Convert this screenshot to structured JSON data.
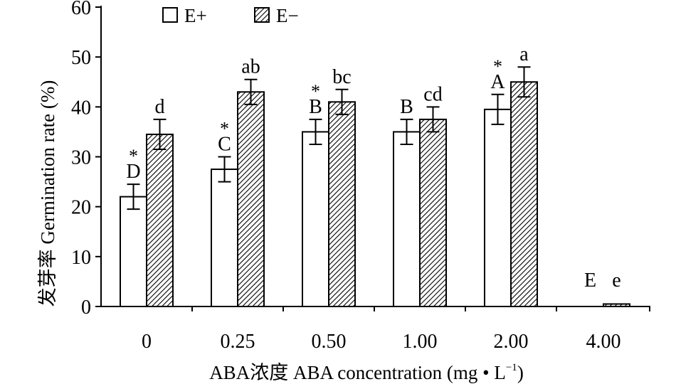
{
  "chart_data": {
    "type": "bar",
    "title": "",
    "ylabel": "发芽率 Germination rate (%)",
    "xlabel": "ABA浓度 ABA concentration (mg • L",
    "xlabel_sup": "−1",
    "xlabel_close": ")",
    "ylim": [
      0,
      60
    ],
    "yticks": [
      0,
      10,
      20,
      30,
      40,
      50,
      60
    ],
    "categories": [
      "0",
      "0.25",
      "0.50",
      "1.00",
      "2.00",
      "4.00"
    ],
    "legend_position": "top-left",
    "series": [
      {
        "name": "E+",
        "fill": "white",
        "values": [
          22.0,
          27.5,
          35.0,
          35.0,
          39.5,
          0
        ],
        "errors": [
          2.5,
          2.5,
          2.5,
          2.5,
          3.0,
          0
        ],
        "letters": [
          "D",
          "C",
          "B",
          "B",
          "A",
          "E"
        ],
        "stars": [
          "*",
          "*",
          "*",
          "",
          "*",
          ""
        ]
      },
      {
        "name": "E−",
        "fill": "hatched",
        "values": [
          34.5,
          43.0,
          41.0,
          37.5,
          45.0,
          0.5
        ],
        "errors": [
          3.0,
          2.5,
          2.5,
          2.5,
          3.0,
          0
        ],
        "letters": [
          "d",
          "ab",
          "bc",
          "cd",
          "a",
          "e"
        ],
        "stars": [
          "",
          "",
          "",
          "",
          "",
          ""
        ]
      }
    ],
    "colors": {
      "axis": "#000000",
      "bar_fill": "#ffffff",
      "hatch": "#000000"
    }
  }
}
